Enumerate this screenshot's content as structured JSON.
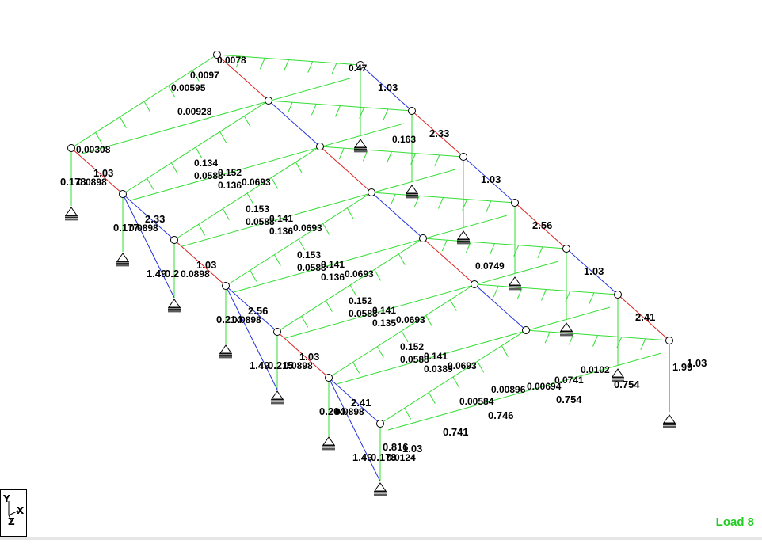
{
  "load_case": "Load 8",
  "axes": {
    "y": "Y",
    "x": "X",
    "z": "Z"
  },
  "colors": {
    "green": "#33dd33",
    "blue": "#2233dd",
    "red": "#dd2222",
    "support": "#000000"
  },
  "column_labels": [
    "0.178",
    "0.177",
    "0.2",
    "0.214",
    "0.215",
    "0.204",
    "0.178"
  ],
  "column_labels_right": [
    "0.816",
    "0.741",
    "0.746",
    "0.754",
    "0.754",
    "1.99"
  ],
  "rafter_labels": [
    "1.03",
    "2.33",
    "1.03",
    "2.56",
    "1.03",
    "2.41",
    "1.03"
  ],
  "rafter_labels_right": [
    "1.03",
    "2.33",
    "1.03",
    "2.56",
    "1.03",
    "2.41",
    "1.03"
  ],
  "brace_labels": [
    "1.49",
    "1.49",
    "1.49"
  ],
  "bay_labels": [
    [
      "0.134",
      "0.152",
      "0.0693",
      "0.0588",
      "0.136"
    ],
    [
      "0.153",
      "0.141",
      "0.0693",
      "0.0588",
      "0.136"
    ],
    [
      "0.153",
      "0.141",
      "0.0693",
      "0.0588",
      "0.136"
    ],
    [
      "0.152",
      "0.141",
      "0.0693",
      "0.0588",
      "0.135"
    ],
    [
      "0.152",
      "0.141",
      "0.0693",
      "0.0588",
      "0.0389"
    ]
  ],
  "node_labels": [
    "0.0898",
    "0.0898",
    "0.0898",
    "0.0898",
    "0.0898",
    "0.0898",
    "0.0124"
  ],
  "ridge_labels": [
    "0.0078",
    "0.0097",
    "0.00595",
    "0.00928",
    "0.00308",
    "0.47",
    "0.163",
    "0.0749",
    "0.0741",
    "0.0102",
    "0.00694",
    "0.00584",
    "0.00896"
  ]
}
